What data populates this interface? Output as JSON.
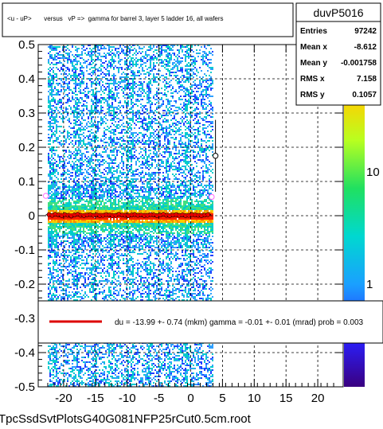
{
  "chart_data": {
    "type": "scatter",
    "title": "<u - uP>       versus   vP =>  gamma for barrel 3, layer 5 ladder 16, all wafers",
    "xlim": [
      -24,
      24
    ],
    "ylim": [
      -0.5,
      0.5
    ],
    "x_ticks": [
      -20,
      -15,
      -10,
      -5,
      0,
      5,
      10,
      15,
      20
    ],
    "y_ticks": [
      0.5,
      0.4,
      0.3,
      0.2,
      0.1,
      0,
      -0.1,
      -0.2,
      -0.3,
      -0.4,
      -0.5
    ],
    "x_tick_labels": [
      "-20",
      "-15",
      "-10",
      "-5",
      "0",
      "5",
      "10",
      "15",
      "20"
    ],
    "y_tick_labels": [
      "0.5",
      "0.4",
      "0.3",
      "0.2",
      "0.1",
      "0",
      "-0.1",
      "-0.2",
      "-0.3",
      "-0.4",
      "-0.5"
    ],
    "grid": true,
    "palette_labels": [
      "10",
      "1"
    ],
    "palette_scale": "log",
    "colors": {
      "profile_points": "#ff0000",
      "fit_line": "#dd0000",
      "highlight_points": "#ff66ff",
      "hist_low": "#2040ff",
      "hist_mid": "#00cccc",
      "hist_high": "#ff2000"
    },
    "histogram": {
      "x_range": [
        -22.5,
        3.5
      ],
      "bands": [
        {
          "x0": -22.5,
          "x1": -21.2,
          "density": "high"
        },
        {
          "x0": -18.6,
          "x1": -17.6,
          "density": "high"
        },
        {
          "x0": -15.8,
          "x1": -14.9,
          "density": "high"
        },
        {
          "x0": -13.0,
          "x1": -12.1,
          "density": "high"
        },
        {
          "x0": -10.2,
          "x1": -9.2,
          "density": "high"
        },
        {
          "x0": -7.2,
          "x1": -6.4,
          "density": "high"
        },
        {
          "x0": -4.2,
          "x1": -3.3,
          "density": "high"
        },
        {
          "x0": -1.0,
          "x1": 0.0,
          "density": "high"
        }
      ]
    },
    "profile": {
      "x": [
        -22.3,
        -21.8,
        -21.3,
        -20.8,
        -20.3,
        -19.8,
        -19.3,
        -18.8,
        -18.3,
        -17.8,
        -17.3,
        -16.8,
        -16.3,
        -15.8,
        -15.3,
        -14.8,
        -14.3,
        -13.8,
        -13.3,
        -12.8,
        -12.3,
        -11.8,
        -11.3,
        -10.8,
        -10.3,
        -9.8,
        -9.3,
        -8.8,
        -8.3,
        -7.8,
        -7.3,
        -6.8,
        -6.3,
        -5.8,
        -5.3,
        -4.8,
        -4.3,
        -3.8,
        -3.3,
        -2.8,
        -2.3,
        -1.8,
        -1.3,
        -0.8,
        -0.3,
        0.2,
        0.7,
        1.2,
        1.7,
        2.2,
        2.7
      ],
      "y": [
        0.003,
        0.001,
        0.004,
        0.002,
        0.0,
        0.003,
        0.001,
        -0.001,
        0.002,
        0.004,
        0.001,
        0.0,
        0.002,
        0.003,
        0.001,
        0.002,
        0.0,
        0.001,
        0.003,
        0.002,
        0.0,
        0.001,
        0.004,
        0.002,
        0.001,
        0.0,
        0.002,
        0.003,
        0.001,
        0.002,
        0.0,
        0.001,
        0.003,
        0.002,
        0.0,
        0.002,
        0.004,
        0.001,
        0.0,
        0.002,
        0.003,
        0.001,
        0.002,
        0.0,
        0.001,
        0.003,
        0.002,
        0.001,
        0.0,
        0.002,
        0.003
      ]
    },
    "outliers": [
      {
        "x": -22.8,
        "y": 0.058,
        "err": 0.0,
        "color": "#ff66ff"
      },
      {
        "x": 3.3,
        "y": 0.055,
        "err": 0.0,
        "color": "#ff66ff"
      },
      {
        "x": 3.9,
        "y": 0.175,
        "err": 0.105,
        "color": "#000000"
      }
    ],
    "stats": {
      "name": "duvP5016",
      "rows": [
        {
          "label": "Entries",
          "value": "97242"
        },
        {
          "label": "Mean x",
          "value": "-8.612"
        },
        {
          "label": "Mean y",
          "value": "-0.001758"
        },
        {
          "label": "RMS x",
          "value": "7.158"
        },
        {
          "label": "RMS y",
          "value": "0.1057"
        }
      ]
    },
    "legend": {
      "text": "du =  -13.99 +-  0.74 (mkm) gamma =   -0.01 +-  0.01 (mrad) prob = 0.003"
    },
    "footer": "TpcSsdSvtPlotsG40G081NFP25rCut0.5cm.root"
  }
}
